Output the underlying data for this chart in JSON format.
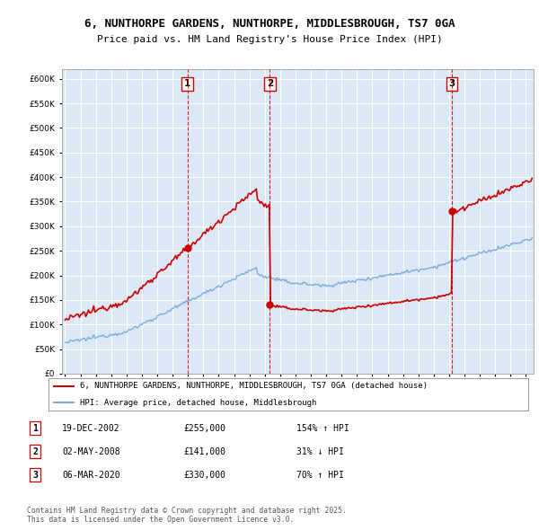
{
  "title_line1": "6, NUNTHORPE GARDENS, NUNTHORPE, MIDDLESBROUGH, TS7 0GA",
  "title_line2": "Price paid vs. HM Land Registry's House Price Index (HPI)",
  "transactions": [
    {
      "date_year": 2002.97,
      "price": 255000,
      "label": "1",
      "hpi_pct": "154% ↑ HPI",
      "display_date": "19-DEC-2002"
    },
    {
      "date_year": 2008.33,
      "price": 141000,
      "label": "2",
      "hpi_pct": "31% ↓ HPI",
      "display_date": "02-MAY-2008"
    },
    {
      "date_year": 2020.17,
      "price": 330000,
      "label": "3",
      "hpi_pct": "70% ↑ HPI",
      "display_date": "06-MAR-2020"
    }
  ],
  "legend_line1": "6, NUNTHORPE GARDENS, NUNTHORPE, MIDDLESBROUGH, TS7 0GA (detached house)",
  "legend_line2": "HPI: Average price, detached house, Middlesbrough",
  "footnote": "Contains HM Land Registry data © Crown copyright and database right 2025.\nThis data is licensed under the Open Government Licence v3.0.",
  "red_color": "#cc0000",
  "blue_color": "#7aaddb",
  "plot_bg_color": "#dce8f5",
  "grid_color": "#ffffff",
  "ylim_max": 620000,
  "yticks": [
    0,
    50000,
    100000,
    150000,
    200000,
    250000,
    300000,
    350000,
    400000,
    450000,
    500000,
    550000,
    600000
  ],
  "xmin": 1994.8,
  "xmax": 2025.5
}
